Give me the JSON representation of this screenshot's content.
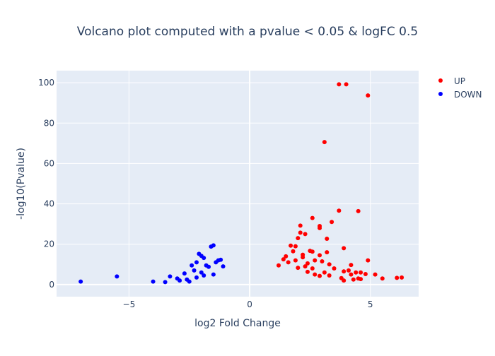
{
  "chart_data": {
    "type": "scatter",
    "title": "Volcano plot computed with a pvalue < 0.05 & logFC 0.5",
    "xlabel": "log2 Fold Change",
    "ylabel": "-log10(Pvalue)",
    "xlim": [
      -8,
      7
    ],
    "ylim": [
      -6,
      106
    ],
    "x_ticks": [
      -5,
      0,
      5
    ],
    "x_tick_labels": [
      "−5",
      "0",
      "5"
    ],
    "y_ticks": [
      0,
      20,
      40,
      60,
      80,
      100
    ],
    "y_tick_labels": [
      "0",
      "20",
      "40",
      "60",
      "80",
      "100"
    ],
    "grid": true,
    "legend_position": "top-right",
    "series": [
      {
        "name": "UP",
        "color": "#ff0000",
        "points": [
          [
            3.7,
            99.2
          ],
          [
            4.0,
            99.2
          ],
          [
            4.9,
            93.7
          ],
          [
            3.1,
            70.6
          ],
          [
            3.7,
            36.6
          ],
          [
            4.5,
            36.4
          ],
          [
            2.6,
            33.0
          ],
          [
            3.4,
            31.0
          ],
          [
            2.9,
            29.0
          ],
          [
            2.9,
            28.0
          ],
          [
            2.1,
            29.2
          ],
          [
            2.1,
            25.7
          ],
          [
            2.3,
            25.0
          ],
          [
            2.0,
            23.0
          ],
          [
            3.2,
            22.7
          ],
          [
            1.7,
            19.3
          ],
          [
            1.9,
            19.0
          ],
          [
            1.8,
            16.5
          ],
          [
            2.5,
            16.7
          ],
          [
            2.6,
            16.3
          ],
          [
            3.2,
            16.0
          ],
          [
            2.2,
            14.8
          ],
          [
            2.9,
            14.5
          ],
          [
            1.5,
            14.0
          ],
          [
            2.2,
            13.5
          ],
          [
            1.4,
            12.5
          ],
          [
            2.7,
            12.0
          ],
          [
            3.0,
            11.5
          ],
          [
            3.3,
            10.0
          ],
          [
            1.6,
            11.0
          ],
          [
            2.4,
            10.5
          ],
          [
            3.5,
            8.0
          ],
          [
            3.9,
            18.0
          ],
          [
            4.2,
            9.7
          ],
          [
            4.9,
            12.0
          ],
          [
            4.1,
            7.0
          ],
          [
            3.9,
            6.5
          ],
          [
            4.4,
            6.0
          ],
          [
            4.6,
            6.0
          ],
          [
            4.8,
            5.2
          ],
          [
            5.2,
            5.0
          ],
          [
            4.2,
            5.0
          ],
          [
            4.5,
            3.0
          ],
          [
            5.5,
            3.0
          ],
          [
            6.1,
            3.3
          ],
          [
            6.3,
            3.5
          ],
          [
            3.9,
            2.0
          ],
          [
            4.3,
            2.5
          ],
          [
            4.6,
            2.7
          ],
          [
            3.8,
            3.2
          ],
          [
            2.9,
            4.3
          ],
          [
            3.3,
            4.5
          ],
          [
            2.7,
            5.0
          ],
          [
            2.4,
            6.3
          ],
          [
            3.1,
            6.0
          ],
          [
            2.0,
            8.3
          ],
          [
            2.3,
            9.0
          ],
          [
            1.2,
            9.5
          ],
          [
            1.9,
            12.0
          ],
          [
            2.6,
            8.0
          ]
        ]
      },
      {
        "name": "DOWN",
        "color": "#0000ff",
        "points": [
          [
            -7.0,
            1.5
          ],
          [
            -5.5,
            4.0
          ],
          [
            -4.0,
            1.5
          ],
          [
            -3.5,
            1.2
          ],
          [
            -3.3,
            4.0
          ],
          [
            -2.9,
            2.0
          ],
          [
            -2.7,
            5.5
          ],
          [
            -2.5,
            1.5
          ],
          [
            -2.4,
            9.5
          ],
          [
            -2.2,
            11.0
          ],
          [
            -2.3,
            7.0
          ],
          [
            -2.1,
            15.2
          ],
          [
            -2.0,
            14.2
          ],
          [
            -1.9,
            13.2
          ],
          [
            -1.6,
            18.8
          ],
          [
            -1.5,
            19.4
          ],
          [
            -1.8,
            9.5
          ],
          [
            -1.7,
            8.8
          ],
          [
            -1.3,
            12.0
          ],
          [
            -1.2,
            12.3
          ],
          [
            -1.4,
            11.0
          ],
          [
            -1.1,
            9.0
          ],
          [
            -2.0,
            6.0
          ],
          [
            -2.6,
            2.5
          ],
          [
            -2.2,
            3.5
          ],
          [
            -1.9,
            4.5
          ],
          [
            -3.0,
            3.0
          ],
          [
            -1.5,
            5.0
          ]
        ]
      }
    ]
  }
}
